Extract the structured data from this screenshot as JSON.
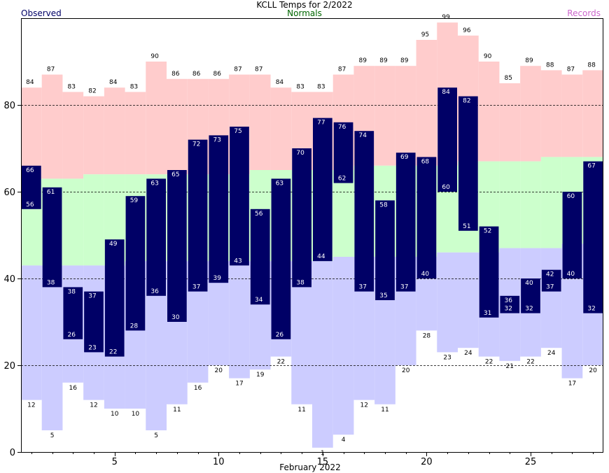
{
  "chart_data": {
    "type": "bar",
    "title": "KCLL Temps for 2/2022",
    "xlabel": "February 2022",
    "ylabel": "",
    "legend": {
      "observed": "Observed",
      "normals": "Normals",
      "records": "Records"
    },
    "colors": {
      "observed": "#000066",
      "normal_band": "#ccffcc",
      "record_high_band": "#ffcccc",
      "record_low_band": "#ccccff",
      "observed_label": "#000066",
      "normals_label": "#006600",
      "records_label": "#cc66cc"
    },
    "ylim": [
      0,
      100
    ],
    "yticks": [
      0,
      20,
      40,
      60,
      80
    ],
    "xticks": [
      5,
      10,
      15,
      20,
      25
    ],
    "xlim": [
      0.5,
      28.5
    ],
    "grid": true,
    "days": [
      1,
      2,
      3,
      4,
      5,
      6,
      7,
      8,
      9,
      10,
      11,
      12,
      13,
      14,
      15,
      16,
      17,
      18,
      19,
      20,
      21,
      22,
      23,
      24,
      25,
      26,
      27,
      28
    ],
    "series": [
      {
        "name": "Records",
        "key": "record_high",
        "values": [
          84,
          87,
          83,
          82,
          84,
          83,
          90,
          86,
          86,
          86,
          87,
          87,
          84,
          83,
          83,
          87,
          89,
          89,
          89,
          95,
          99,
          96,
          90,
          85,
          89,
          88,
          87,
          88
        ]
      },
      {
        "name": "Normals",
        "key": "normal_high",
        "values": [
          63,
          63,
          63,
          64,
          64,
          64,
          64,
          64,
          64,
          64,
          64,
          65,
          65,
          65,
          65,
          65,
          66,
          66,
          66,
          66,
          66,
          67,
          67,
          67,
          67,
          68,
          68,
          68
        ]
      },
      {
        "name": "Normals",
        "key": "normal_low",
        "values": [
          43,
          43,
          43,
          43,
          43,
          44,
          44,
          44,
          44,
          44,
          44,
          44,
          44,
          44,
          44,
          45,
          45,
          45,
          45,
          45,
          46,
          46,
          46,
          47,
          47,
          47,
          48,
          48
        ]
      },
      {
        "name": "Records",
        "key": "record_low",
        "values": [
          12,
          5,
          16,
          12,
          10,
          10,
          5,
          11,
          16,
          20,
          17,
          19,
          22,
          11,
          1,
          4,
          12,
          11,
          20,
          28,
          23,
          24,
          22,
          21,
          22,
          24,
          17,
          20
        ]
      },
      {
        "name": "Observed",
        "key": "observed_high",
        "values": [
          66,
          61,
          38,
          37,
          49,
          59,
          63,
          65,
          72,
          73,
          75,
          56,
          63,
          70,
          77,
          76,
          74,
          58,
          69,
          68,
          84,
          82,
          52,
          36,
          40,
          42,
          60,
          67
        ]
      },
      {
        "name": "Observed",
        "key": "observed_low",
        "values": [
          56,
          38,
          26,
          23,
          22,
          28,
          36,
          30,
          37,
          39,
          43,
          34,
          26,
          38,
          44,
          62,
          37,
          35,
          37,
          40,
          60,
          51,
          31,
          32,
          32,
          37,
          40,
          32
        ]
      }
    ]
  }
}
